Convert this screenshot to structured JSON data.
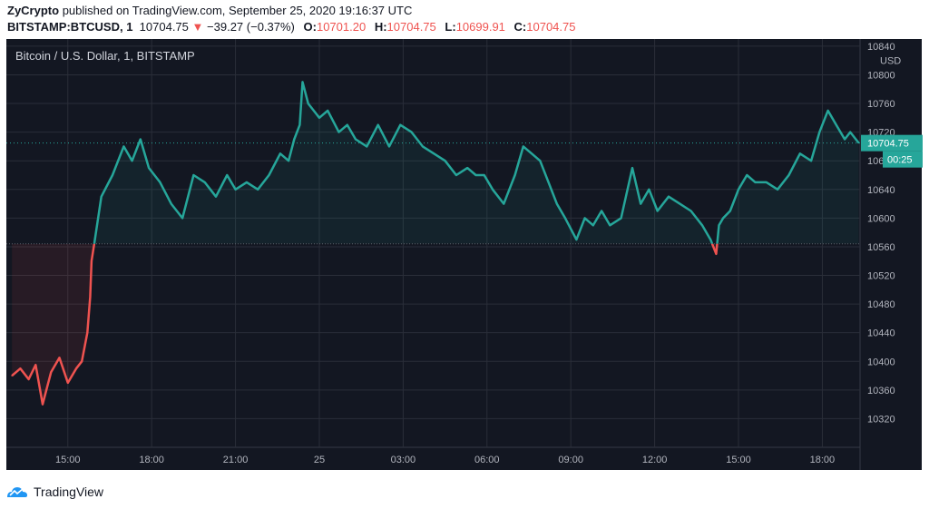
{
  "header": {
    "publisher": "ZyCrypto",
    "published_text": "published on TradingView.com, September 25, 2020 19:16:37 UTC",
    "symbol": "BITSTAMP:BTCUSD, 1",
    "last": "10704.75",
    "arrow": "▼",
    "change": "−39.27 (−0.37%)",
    "o_label": "O:",
    "o_value": "10701.20",
    "h_label": "H:",
    "h_value": "10704.75",
    "l_label": "L:",
    "l_value": "10699.91",
    "c_label": "C:",
    "c_value": "10704.75"
  },
  "footer": {
    "brand": "TradingView"
  },
  "colors": {
    "background": "#131722",
    "up": "#26a69a",
    "down": "#ef5350",
    "grid": "#2a2e39",
    "text": "#b2b5be"
  },
  "chart_data": {
    "type": "line",
    "title": "Bitcoin / U.S. Dollar, 1, BITSTAMP",
    "currency": "USD",
    "xlabel": "",
    "ylabel": "",
    "ylim": [
      10280,
      10850
    ],
    "yticks": [
      10320,
      10360,
      10400,
      10440,
      10480,
      10520,
      10560,
      10600,
      10640,
      10680,
      10720,
      10760,
      10800,
      10840
    ],
    "xticks": [
      {
        "t": 15.0,
        "label": "15:00"
      },
      {
        "t": 18.0,
        "label": "18:00"
      },
      {
        "t": 21.0,
        "label": "21:00"
      },
      {
        "t": 24.0,
        "label": "25"
      },
      {
        "t": 27.0,
        "label": "03:00"
      },
      {
        "t": 30.0,
        "label": "06:00"
      },
      {
        "t": 33.0,
        "label": "09:00"
      },
      {
        "t": 36.0,
        "label": "12:00"
      },
      {
        "t": 39.0,
        "label": "15:00"
      },
      {
        "t": 42.0,
        "label": "18:00"
      }
    ],
    "xrange": [
      12.8,
      43.35
    ],
    "baseline": 10564,
    "last_price": "10704.75",
    "countdown": "00:25",
    "x": [
      13.0,
      13.3,
      13.6,
      13.85,
      14.1,
      14.4,
      14.7,
      15.0,
      15.3,
      15.5,
      15.7,
      15.8,
      15.85,
      15.95,
      16.2,
      16.6,
      17.0,
      17.3,
      17.6,
      17.9,
      18.3,
      18.7,
      19.1,
      19.5,
      19.9,
      20.3,
      20.7,
      21.0,
      21.4,
      21.8,
      22.2,
      22.6,
      22.9,
      23.1,
      23.3,
      23.4,
      23.6,
      24.0,
      24.3,
      24.7,
      25.0,
      25.3,
      25.7,
      26.1,
      26.5,
      26.9,
      27.3,
      27.7,
      28.1,
      28.5,
      28.9,
      29.3,
      29.6,
      29.9,
      30.2,
      30.6,
      31.0,
      31.3,
      31.6,
      31.9,
      32.2,
      32.5,
      32.8,
      33.2,
      33.5,
      33.8,
      34.1,
      34.4,
      34.8,
      35.2,
      35.5,
      35.8,
      36.1,
      36.5,
      36.9,
      37.3,
      37.7,
      38.0,
      38.2,
      38.3,
      38.45,
      38.7,
      39.0,
      39.3,
      39.6,
      40.0,
      40.4,
      40.8,
      41.2,
      41.6,
      41.9,
      42.2,
      42.5,
      42.8,
      43.0,
      43.3
    ],
    "y": [
      10380,
      10390,
      10375,
      10395,
      10340,
      10385,
      10405,
      10370,
      10390,
      10400,
      10440,
      10490,
      10540,
      10565,
      10630,
      10660,
      10700,
      10680,
      10710,
      10670,
      10650,
      10620,
      10600,
      10660,
      10650,
      10630,
      10660,
      10640,
      10650,
      10640,
      10660,
      10690,
      10680,
      10710,
      10730,
      10790,
      10760,
      10740,
      10750,
      10720,
      10730,
      10710,
      10700,
      10730,
      10700,
      10730,
      10720,
      10700,
      10690,
      10680,
      10660,
      10670,
      10660,
      10660,
      10640,
      10620,
      10660,
      10700,
      10690,
      10680,
      10650,
      10620,
      10600,
      10570,
      10600,
      10590,
      10610,
      10590,
      10600,
      10670,
      10620,
      10640,
      10610,
      10630,
      10620,
      10610,
      10590,
      10570,
      10550,
      10590,
      10600,
      10610,
      10640,
      10660,
      10650,
      10650,
      10640,
      10660,
      10690,
      10680,
      10720,
      10750,
      10730,
      10710,
      10720,
      10705
    ]
  }
}
